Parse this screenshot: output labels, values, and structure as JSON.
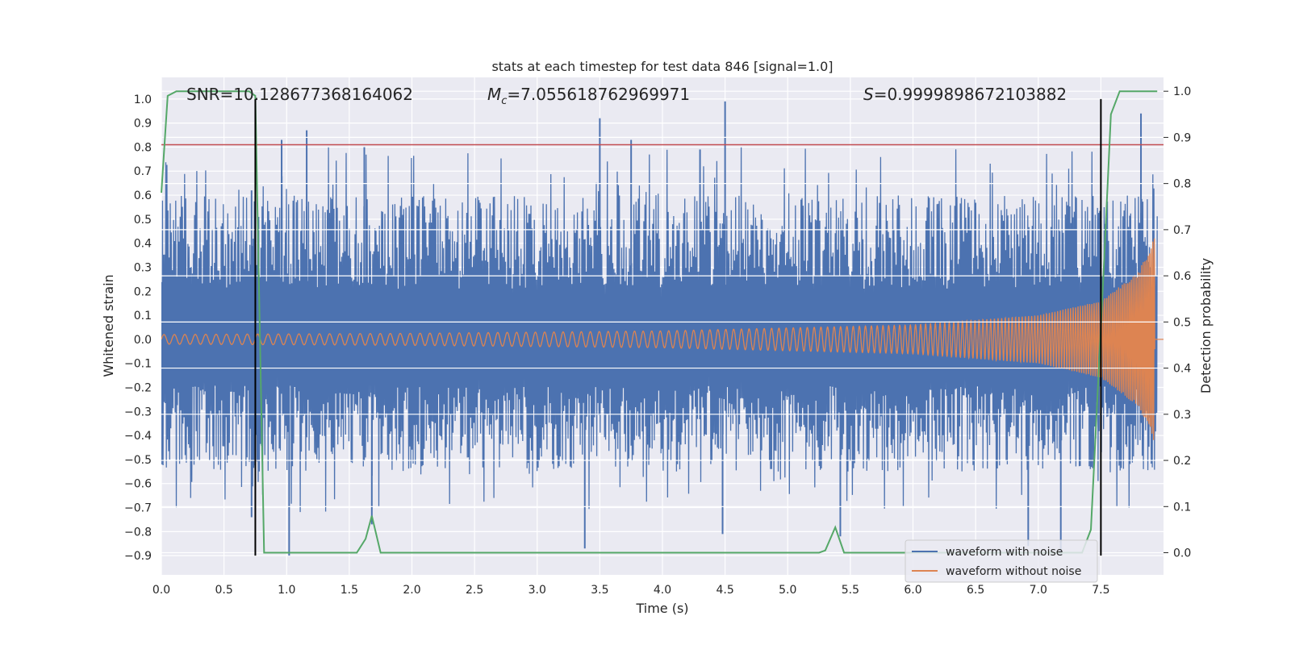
{
  "chart_data": {
    "type": "line",
    "title": "stats at each timestep for test data 846 [signal=1.0]",
    "xlabel": "Time (s)",
    "ylabel": "Whitened strain",
    "y2label": "Detection probability",
    "xlim": [
      0.0,
      8.0
    ],
    "ylim": [
      -0.98,
      1.09
    ],
    "y2lim": [
      -0.048,
      1.03
    ],
    "xticks": [
      0.0,
      0.5,
      1.0,
      1.5,
      2.0,
      2.5,
      3.0,
      3.5,
      4.0,
      4.5,
      5.0,
      5.5,
      6.0,
      6.5,
      7.0,
      7.5
    ],
    "xtick_labels": [
      "0.0",
      "0.5",
      "1.0",
      "1.5",
      "2.0",
      "2.5",
      "3.0",
      "3.5",
      "4.0",
      "4.5",
      "5.0",
      "5.5",
      "6.0",
      "6.5",
      "7.0",
      "7.5"
    ],
    "yticks": [
      1.0,
      0.9,
      0.8,
      0.7,
      0.6,
      0.5,
      0.4,
      0.3,
      0.2,
      0.1,
      0.0,
      -0.1,
      -0.2,
      -0.3,
      -0.4,
      -0.5,
      -0.6,
      -0.7,
      -0.8,
      -0.9
    ],
    "ytick_labels": [
      "1.0",
      "0.9",
      "0.8",
      "0.7",
      "0.6",
      "0.5",
      "0.4",
      "0.3",
      "0.2",
      "0.1",
      "0.0",
      "−0.1",
      "−0.2",
      "−0.3",
      "−0.4",
      "−0.5",
      "−0.6",
      "−0.7",
      "−0.8",
      "−0.9"
    ],
    "y2ticks": [
      1.0,
      0.9,
      0.8,
      0.7,
      0.6,
      0.5,
      0.4,
      0.3,
      0.2,
      0.1,
      0.0
    ],
    "y2tick_labels": [
      "1.0",
      "0.9",
      "0.8",
      "0.7",
      "0.6",
      "0.5",
      "0.4",
      "0.3",
      "0.2",
      "0.1",
      "0.0"
    ],
    "grid": true,
    "legend_placement": "lower-right",
    "annotations": {
      "snr": "SNR=10.128677368164062",
      "mc_symbol": "M",
      "mc_sub": "c",
      "mc_value": "=7.055618762969971",
      "s_symbol": "S",
      "s_value": "=0.9999898672103882"
    },
    "series": [
      {
        "name": "waveform with noise",
        "color": "#4c72b0",
        "axis": "left",
        "description_band": {
          "x": [
            0.0,
            7.95
          ],
          "typical_min": -0.55,
          "typical_max": 0.6
        },
        "peaks": [
          {
            "x": 0.72,
            "y": 0.62
          },
          {
            "x": 0.96,
            "y": 0.83
          },
          {
            "x": 1.16,
            "y": 0.87
          },
          {
            "x": 1.62,
            "y": 0.8
          },
          {
            "x": 3.5,
            "y": 0.92
          },
          {
            "x": 3.75,
            "y": 0.83
          },
          {
            "x": 4.5,
            "y": 0.99
          },
          {
            "x": 4.3,
            "y": 0.79
          },
          {
            "x": 7.82,
            "y": 0.94
          }
        ],
        "troughs": [
          {
            "x": 0.72,
            "y": -0.74
          },
          {
            "x": 1.02,
            "y": -0.9
          },
          {
            "x": 1.68,
            "y": -0.77
          },
          {
            "x": 3.38,
            "y": -0.87
          },
          {
            "x": 4.48,
            "y": -0.81
          },
          {
            "x": 5.42,
            "y": -0.82
          },
          {
            "x": 6.92,
            "y": -0.86
          },
          {
            "x": 7.18,
            "y": -0.9
          }
        ]
      },
      {
        "name": "waveform without noise",
        "color": "#dd8452",
        "axis": "left",
        "envelope": [
          {
            "x": 0.0,
            "amp": 0.02
          },
          {
            "x": 2.0,
            "amp": 0.025
          },
          {
            "x": 4.0,
            "amp": 0.035
          },
          {
            "x": 6.0,
            "amp": 0.06
          },
          {
            "x": 7.0,
            "amp": 0.1
          },
          {
            "x": 7.5,
            "amp": 0.16
          },
          {
            "x": 7.8,
            "amp": 0.28
          },
          {
            "x": 7.92,
            "amp": 0.42
          }
        ]
      },
      {
        "name": "detection probability",
        "color": "#55a868",
        "axis": "right",
        "x": [
          0.0,
          0.05,
          0.12,
          0.5,
          0.7,
          0.75,
          0.82,
          1.0,
          1.5,
          1.56,
          1.63,
          1.68,
          1.75,
          2.0,
          5.0,
          5.25,
          5.3,
          5.38,
          5.45,
          5.5,
          7.0,
          7.35,
          7.42,
          7.52,
          7.58,
          7.65,
          7.95
        ],
        "y": [
          0.78,
          0.99,
          1.0,
          1.0,
          1.0,
          0.99,
          0.0,
          0.0,
          0.0,
          0.0,
          0.03,
          0.08,
          0.0,
          0.0,
          0.0,
          0.0,
          0.005,
          0.055,
          0.0,
          0.0,
          0.0,
          0.0,
          0.05,
          0.6,
          0.95,
          1.0,
          1.0
        ]
      }
    ],
    "threshold_line": {
      "color": "#c44e52",
      "axis": "left",
      "y": 0.81
    },
    "vertical_lines": [
      {
        "x": 0.75,
        "color": "#000000"
      },
      {
        "x": 7.5,
        "color": "#000000"
      }
    ],
    "vertical_line_span": [
      -0.9,
      1.0
    ]
  }
}
